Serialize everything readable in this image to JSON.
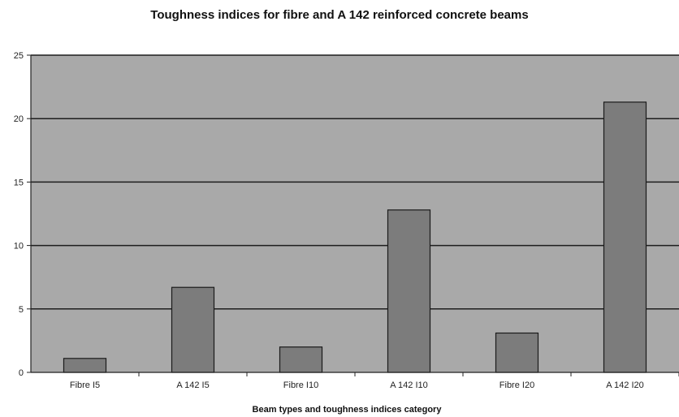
{
  "chart_data": {
    "type": "bar",
    "title": "Toughness indices for fibre and A 142 reinforced concrete beams",
    "xlabel": "Beam types and toughness indices category",
    "ylabel": "",
    "categories": [
      "Fibre I5",
      "A 142 I5",
      "Fibre I10",
      "A 142 I10",
      "Fibre I20",
      "A 142 I20"
    ],
    "values": [
      1.1,
      6.7,
      2.0,
      12.8,
      3.1,
      21.3
    ],
    "ylim": [
      0,
      25
    ],
    "yticks": [
      0,
      5,
      10,
      15,
      20,
      25
    ],
    "grid": true,
    "legend": "none",
    "colors": {
      "plot_bg": "#a9a9a9",
      "bar": "#7c7c7c",
      "gridline": "#1e1e1e"
    }
  }
}
